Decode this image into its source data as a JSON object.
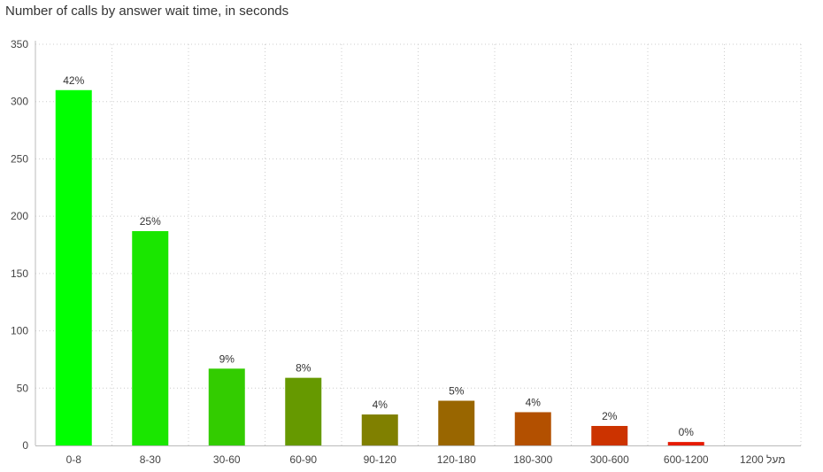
{
  "chart_data": {
    "type": "bar",
    "title": "Number of calls by answer wait time, in seconds",
    "categories": [
      "0-8",
      "8-30",
      "30-60",
      "60-90",
      "90-120",
      "120-180",
      "180-300",
      "300-600",
      "600-1200",
      "מעל 1200"
    ],
    "values": [
      310,
      187,
      67,
      59,
      27,
      39,
      29,
      17,
      3,
      0
    ],
    "data_labels": [
      "42%",
      "25%",
      "9%",
      "8%",
      "4%",
      "5%",
      "4%",
      "2%",
      "0%",
      ""
    ],
    "colors": [
      "#00ff00",
      "#1ae600",
      "#33cc00",
      "#669900",
      "#808000",
      "#996600",
      "#b35000",
      "#cc3300",
      "#e61a00",
      "#ff0000"
    ],
    "y_ticks": [
      "0",
      "50",
      "100",
      "150",
      "200",
      "250",
      "300",
      "350"
    ],
    "ylim": [
      0,
      350
    ],
    "grid": true,
    "legend": "none"
  }
}
